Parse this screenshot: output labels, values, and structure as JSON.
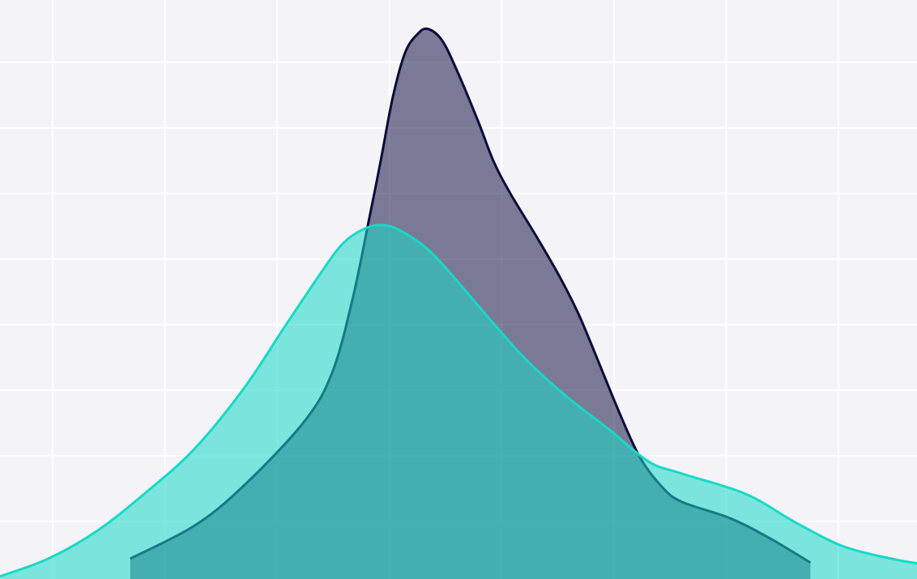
{
  "chart_data": {
    "type": "area",
    "xlim": [
      0.53,
      8.7
    ],
    "ylim": [
      0.12,
      8.95
    ],
    "xticks": [
      1,
      2,
      3,
      4,
      5,
      6,
      7,
      8
    ],
    "yticks": [
      1,
      2,
      3,
      4,
      5,
      6,
      7,
      8
    ],
    "grid": true,
    "series": [
      {
        "color": "#0b0b3b",
        "x": [
          1.69,
          2.26,
          2.7,
          3.24,
          3.49,
          3.67,
          3.82,
          3.92,
          4.03,
          4.14,
          4.25,
          4.34,
          4.47,
          4.61,
          4.79,
          4.93,
          5.08,
          5.3,
          5.51,
          5.69,
          5.87,
          6.05,
          6.23,
          6.42,
          6.6,
          7.03,
          7.39,
          7.75
        ],
        "values": [
          0.43,
          0.93,
          1.54,
          2.52,
          3.27,
          4.38,
          5.62,
          6.48,
          7.47,
          8.15,
          8.43,
          8.51,
          8.33,
          7.84,
          7.1,
          6.48,
          5.99,
          5.37,
          4.75,
          4.14,
          3.4,
          2.65,
          1.98,
          1.54,
          1.3,
          1.05,
          0.74,
          0.37
        ]
      },
      {
        "color": "#17d9c6",
        "x": [
          0.53,
          0.96,
          1.4,
          1.83,
          2.26,
          2.7,
          3.06,
          3.35,
          3.56,
          3.74,
          3.92,
          4.1,
          4.36,
          4.65,
          4.93,
          5.22,
          5.58,
          5.95,
          6.31,
          6.6,
          7.17,
          7.61,
          8.04,
          8.47,
          8.7
        ],
        "values": [
          0.16,
          0.43,
          0.86,
          1.44,
          2.1,
          3.02,
          3.95,
          4.69,
          5.19,
          5.43,
          5.52,
          5.43,
          5.12,
          4.57,
          4.01,
          3.46,
          2.9,
          2.41,
          1.91,
          1.73,
          1.42,
          0.99,
          0.62,
          0.43,
          0.36
        ]
      }
    ]
  }
}
